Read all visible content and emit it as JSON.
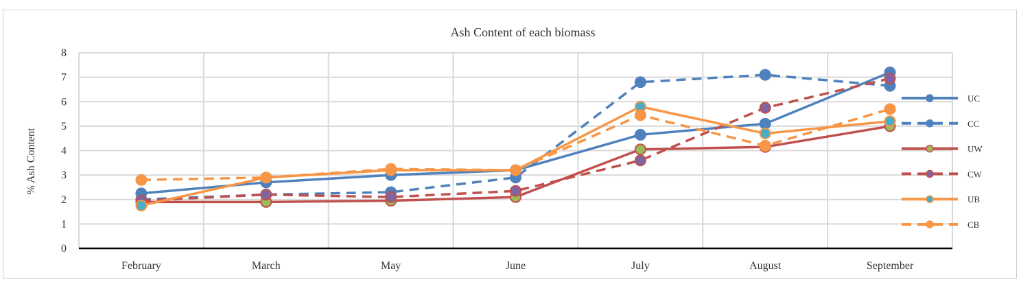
{
  "chart_data": {
    "type": "line",
    "title": "Ash Content of each biomass",
    "xlabel": "",
    "ylabel": "% Ash Content",
    "categories": [
      "February",
      "March",
      "May",
      "June",
      "July",
      "August",
      "September"
    ],
    "ylim": [
      0,
      8
    ],
    "yticks": [
      0,
      1,
      2,
      3,
      4,
      5,
      6,
      7,
      8
    ],
    "grid": true,
    "legend_position": "right",
    "series": [
      {
        "name": "UC",
        "color": "#4f81bd",
        "dash": "solid",
        "marker_color": "#4f81bd",
        "values": [
          2.25,
          2.7,
          3.0,
          3.2,
          4.65,
          5.1,
          7.2
        ]
      },
      {
        "name": "CC",
        "color": "#4f81bd",
        "dash": "dashed",
        "marker_color": "#4f81bd",
        "values": [
          2.0,
          2.2,
          2.3,
          2.9,
          6.8,
          7.1,
          6.65
        ]
      },
      {
        "name": "UW",
        "color": "#c0504d",
        "dash": "solid",
        "marker_color": "#9bbb59",
        "values": [
          1.9,
          1.9,
          1.95,
          2.1,
          4.05,
          4.15,
          5.0
        ]
      },
      {
        "name": "CW",
        "color": "#c0504d",
        "dash": "dashed",
        "marker_color": "#8064a2",
        "values": [
          1.95,
          2.2,
          2.1,
          2.35,
          3.6,
          5.75,
          6.95
        ]
      },
      {
        "name": "UB",
        "color": "#f79646",
        "dash": "solid",
        "marker_color": "#4bacc6",
        "values": [
          1.75,
          2.9,
          3.2,
          3.2,
          5.8,
          4.7,
          5.2
        ]
      },
      {
        "name": "CB",
        "color": "#f79646",
        "dash": "dashed",
        "marker_color": "#f79646",
        "values": [
          2.8,
          2.9,
          3.25,
          3.2,
          5.45,
          4.2,
          5.7
        ]
      }
    ]
  }
}
